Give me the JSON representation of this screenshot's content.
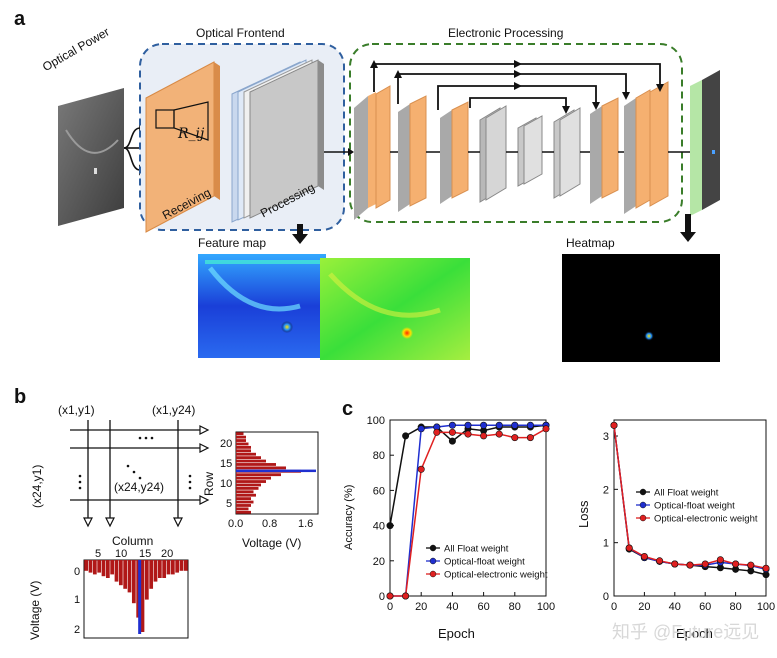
{
  "panel_labels": {
    "a": "a",
    "b": "b",
    "c": "c"
  },
  "panel_a": {
    "optical_power": "Optical Power",
    "optical_frontend": "Optical Frontend",
    "electronic_processing": "Electronic Processing",
    "rij": "R_ij",
    "receiving": "Receiving",
    "processing": "Processing",
    "feature_map": "Feature map",
    "heatmap": "Heatmap"
  },
  "panel_b": {
    "corner_tl": "(x1,y1)",
    "corner_tr": "(x1,y24)",
    "corner_bl": "(x24,y1)",
    "center": "(x24,y24)",
    "column_label": "Column",
    "column_ticks": [
      "5",
      "10",
      "15",
      "20"
    ],
    "voltage_label": "Voltage (V)",
    "voltage_ticks": [
      "0",
      "1",
      "2"
    ],
    "row_label": "Row",
    "row_ticks": [
      "20",
      "15",
      "10",
      "5"
    ],
    "hist_xticks": [
      "0.0",
      "0.8",
      "1.6"
    ],
    "hist_xlabel": "Voltage (V)"
  },
  "colors": {
    "black": "#111111",
    "blue": "#1f2fd0",
    "red": "#e02020",
    "orange": "#f5a868",
    "green": "#3a7d2a",
    "frontend_blue": "#2f5f9f"
  },
  "chart_data": [
    {
      "type": "line",
      "xlabel": "Epoch",
      "ylabel": "Accuracy (%)",
      "xlim": [
        0,
        100
      ],
      "ylim": [
        0,
        100
      ],
      "xticks": [
        "0",
        "20",
        "40",
        "60",
        "80",
        "100"
      ],
      "yticks": [
        "0",
        "20",
        "40",
        "60",
        "80",
        "100"
      ],
      "x": [
        0,
        10,
        20,
        30,
        40,
        50,
        60,
        70,
        80,
        90,
        100
      ],
      "series": [
        {
          "name": "All Float weight",
          "color": "#111111",
          "values": [
            40,
            91,
            96,
            96,
            88,
            95,
            94,
            96,
            96,
            96,
            97
          ]
        },
        {
          "name": "Optical-float weight",
          "color": "#1f2fd0",
          "values": [
            0,
            0,
            95,
            96,
            97,
            97,
            97,
            97,
            97,
            97,
            97
          ]
        },
        {
          "name": "Optical-electronic weight",
          "color": "#e02020",
          "values": [
            0,
            0,
            72,
            93,
            93,
            92,
            91,
            92,
            90,
            90,
            95
          ]
        }
      ],
      "legend": "lower-right"
    },
    {
      "type": "line",
      "xlabel": "Epoch",
      "ylabel": "Loss",
      "xlim": [
        0,
        100
      ],
      "ylim": [
        0,
        3.3
      ],
      "xticks": [
        "0",
        "20",
        "40",
        "60",
        "80",
        "100"
      ],
      "yticks": [
        "0",
        "1",
        "2",
        "3"
      ],
      "x": [
        0,
        10,
        20,
        30,
        40,
        50,
        60,
        70,
        80,
        90,
        100
      ],
      "series": [
        {
          "name": "All Float weight",
          "color": "#111111",
          "values": [
            3.2,
            0.88,
            0.72,
            0.65,
            0.6,
            0.58,
            0.55,
            0.53,
            0.5,
            0.47,
            0.4
          ]
        },
        {
          "name": "Optical-float weight",
          "color": "#1f2fd0",
          "values": [
            3.2,
            0.9,
            0.72,
            0.65,
            0.6,
            0.58,
            0.58,
            0.63,
            0.6,
            0.57,
            0.5
          ]
        },
        {
          "name": "Optical-electronic weight",
          "color": "#e02020",
          "values": [
            3.2,
            0.9,
            0.74,
            0.66,
            0.6,
            0.58,
            0.6,
            0.68,
            0.6,
            0.58,
            0.52
          ]
        }
      ],
      "legend": "center-right"
    }
  ],
  "watermark": "知乎 @Future远见"
}
